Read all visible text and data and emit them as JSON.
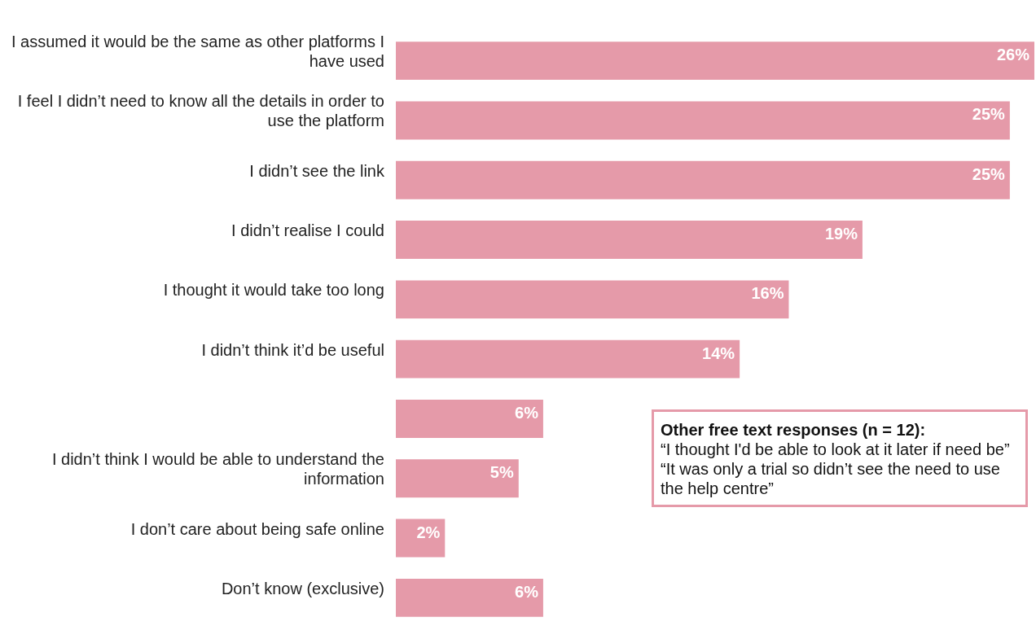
{
  "chart_data": {
    "type": "bar",
    "orientation": "horizontal",
    "categories": [
      "I assumed it would be the same as other platforms I have used",
      "I feel I didn’t need to know all the details in order to use the platform",
      "I didn’t see the link",
      "I didn’t realise I could",
      "I thought it would take too long",
      "I didn’t think it’d be useful",
      null,
      "I didn’t think I would be able to understand the information",
      "I don’t care about being safe online",
      "Don’t know (exclusive)"
    ],
    "values": [
      26,
      25,
      25,
      19,
      16,
      14,
      6,
      5,
      2,
      6
    ],
    "value_labels": [
      "26%",
      "25%",
      "25%",
      "19%",
      "16%",
      "14%",
      "6%",
      "5%",
      "2%",
      "6%"
    ],
    "color": "#e59aa9",
    "grid": false,
    "legend": false,
    "annotations": [
      "Other free text responses (n = 12):",
      "“I thought I'd be able to look at it later if need be”",
      "“It was only a trial so didn’t see the need to use the help centre”"
    ]
  }
}
